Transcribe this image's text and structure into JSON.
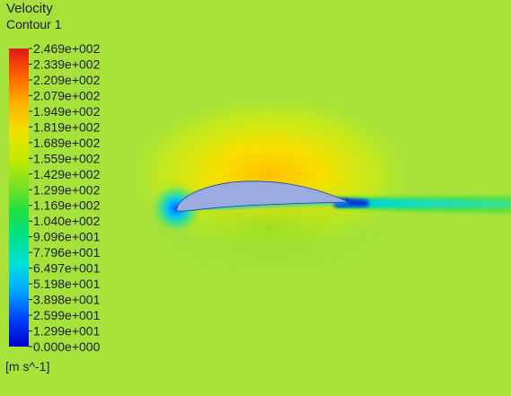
{
  "chart_data": {
    "type": "heatmap",
    "title": "Velocity",
    "subtitle": "Contour 1",
    "units": "[m s^-1]",
    "range": [
      0.0,
      246.9
    ],
    "colorbar_tick_labels": [
      "2.469e+002",
      "2.339e+002",
      "2.209e+002",
      "2.079e+002",
      "1.949e+002",
      "1.819e+002",
      "1.689e+002",
      "1.559e+002",
      "1.429e+002",
      "1.299e+002",
      "1.169e+002",
      "1.040e+002",
      "9.096e+001",
      "7.796e+001",
      "6.497e+001",
      "5.198e+001",
      "3.898e+001",
      "2.599e+001",
      "1.299e+001",
      "0.000e+000"
    ],
    "colormap": [
      "#0000c8",
      "#0040ff",
      "#00a0ff",
      "#00e0e0",
      "#00e090",
      "#20e040",
      "#80e020",
      "#c8e800",
      "#f0e000",
      "#ffb000",
      "#ff6000",
      "#e01818"
    ],
    "freestream_color": "#a6e23a",
    "airfoil_color": "#9aabe0",
    "annotations": [
      "high-velocity region over upper surface of airfoil",
      "low-velocity wake downstream of trailing edge",
      "stagnation point at leading edge"
    ]
  }
}
